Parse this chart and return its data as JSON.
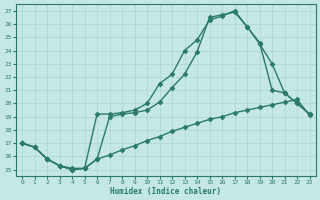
{
  "xlabel": "Humidex (Indice chaleur)",
  "bg_color": "#c5e8e5",
  "line_color": "#2a7a6a",
  "grid_color": "#aad4d0",
  "xlim": [
    -0.5,
    23.5
  ],
  "ylim": [
    14.5,
    27.5
  ],
  "xticks": [
    0,
    1,
    2,
    3,
    4,
    5,
    6,
    7,
    8,
    9,
    10,
    11,
    12,
    13,
    14,
    15,
    16,
    17,
    18,
    19,
    20,
    21,
    22,
    23
  ],
  "yticks": [
    15,
    16,
    17,
    18,
    19,
    20,
    21,
    22,
    23,
    24,
    25,
    26,
    27
  ],
  "line1_x": [
    0,
    1,
    2,
    3,
    4,
    5,
    6,
    7,
    8,
    9,
    10,
    11,
    12,
    13,
    14,
    15,
    16,
    17,
    18,
    19,
    20,
    21,
    22,
    23
  ],
  "line1_y": [
    17.0,
    16.7,
    15.8,
    15.3,
    15.1,
    15.1,
    19.2,
    19.2,
    19.3,
    19.5,
    20.0,
    21.5,
    22.2,
    24.0,
    24.8,
    26.3,
    26.6,
    27.0,
    25.8,
    24.5,
    23.0,
    20.8,
    20.0,
    19.2
  ],
  "line2_x": [
    0,
    1,
    2,
    3,
    4,
    5,
    6,
    7,
    8,
    9,
    10,
    11,
    12,
    13,
    14,
    15,
    16,
    17,
    18,
    19,
    20,
    21,
    22,
    23
  ],
  "line2_y": [
    17.0,
    16.7,
    15.8,
    15.3,
    15.0,
    15.1,
    15.8,
    19.0,
    19.2,
    19.3,
    19.5,
    20.1,
    21.2,
    22.2,
    23.9,
    26.5,
    26.7,
    26.9,
    25.8,
    24.6,
    21.0,
    20.8,
    20.0,
    19.2
  ],
  "line3_x": [
    0,
    1,
    2,
    3,
    4,
    5,
    6,
    7,
    8,
    9,
    10,
    11,
    12,
    13,
    14,
    15,
    16,
    17,
    18,
    19,
    20,
    21,
    22,
    23
  ],
  "line3_y": [
    17.0,
    16.7,
    15.8,
    15.3,
    15.0,
    15.1,
    15.8,
    16.1,
    16.5,
    16.8,
    17.2,
    17.5,
    17.9,
    18.2,
    18.5,
    18.8,
    19.0,
    19.3,
    19.5,
    19.7,
    19.9,
    20.1,
    20.3,
    19.1
  ],
  "marker": "D",
  "markersize": 2.5,
  "linewidth": 1.0
}
